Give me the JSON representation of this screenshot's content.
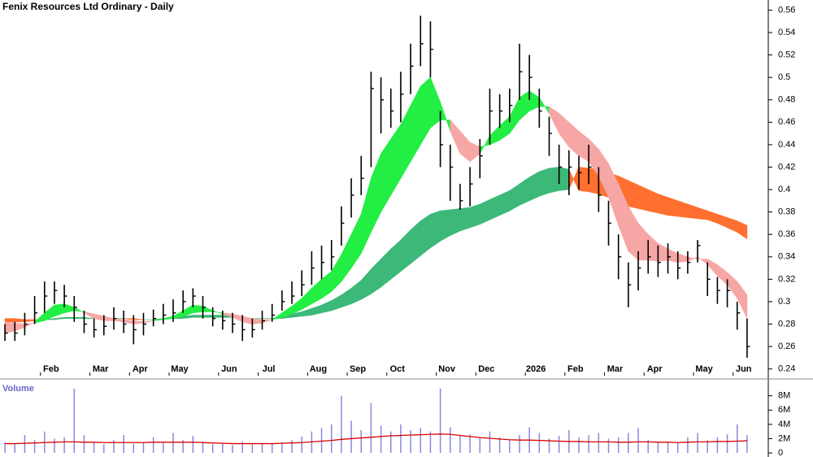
{
  "chart_data": {
    "type": "ohlc",
    "title": "Fenix Resources Ltd Ordinary - Daily",
    "categories": [
      null,
      null,
      null,
      null,
      "Feb",
      null,
      null,
      null,
      null,
      "Mar",
      null,
      null,
      null,
      "Apr",
      null,
      null,
      null,
      "May",
      null,
      null,
      null,
      null,
      "Jun",
      null,
      null,
      null,
      "Jul",
      null,
      null,
      null,
      null,
      "Aug",
      null,
      null,
      null,
      "Sep",
      null,
      null,
      null,
      "Oct",
      null,
      null,
      null,
      null,
      "Nov",
      null,
      null,
      null,
      "Dec",
      null,
      null,
      null,
      null,
      "2026",
      null,
      null,
      null,
      "Feb",
      null,
      null,
      null,
      "Mar",
      null,
      null,
      null,
      "Apr",
      null,
      null,
      null,
      null,
      "May",
      null,
      null,
      null,
      "Jun",
      null
    ],
    "high": [
      0.28,
      0.282,
      0.29,
      0.305,
      0.318,
      0.318,
      0.315,
      0.305,
      0.292,
      0.285,
      0.288,
      0.295,
      0.292,
      0.288,
      0.29,
      0.293,
      0.298,
      0.302,
      0.31,
      0.312,
      0.305,
      0.295,
      0.292,
      0.29,
      0.288,
      0.285,
      0.292,
      0.298,
      0.31,
      0.318,
      0.328,
      0.345,
      0.35,
      0.355,
      0.385,
      0.41,
      0.43,
      0.505,
      0.5,
      0.49,
      0.505,
      0.53,
      0.555,
      0.55,
      0.47,
      0.44,
      0.405,
      0.42,
      0.445,
      0.49,
      0.485,
      0.49,
      0.53,
      0.52,
      0.49,
      0.465,
      0.44,
      0.435,
      0.43,
      0.44,
      0.42,
      0.39,
      0.36,
      0.335,
      0.345,
      0.355,
      0.35,
      0.352,
      0.345,
      0.345,
      0.355,
      0.335,
      0.322,
      0.32,
      0.3,
      0.285
    ],
    "low": [
      0.265,
      0.265,
      0.27,
      0.28,
      0.29,
      0.298,
      0.295,
      0.282,
      0.272,
      0.268,
      0.27,
      0.275,
      0.272,
      0.262,
      0.27,
      0.278,
      0.28,
      0.282,
      0.29,
      0.295,
      0.285,
      0.278,
      0.275,
      0.272,
      0.265,
      0.268,
      0.275,
      0.282,
      0.292,
      0.298,
      0.305,
      0.315,
      0.32,
      0.328,
      0.35,
      0.375,
      0.395,
      0.42,
      0.45,
      0.455,
      0.46,
      0.485,
      0.51,
      0.5,
      0.42,
      0.39,
      0.382,
      0.385,
      0.41,
      0.44,
      0.455,
      0.46,
      0.48,
      0.48,
      0.455,
      0.43,
      0.405,
      0.395,
      0.4,
      0.405,
      0.38,
      0.35,
      0.32,
      0.295,
      0.31,
      0.325,
      0.322,
      0.325,
      0.32,
      0.325,
      0.335,
      0.305,
      0.298,
      0.295,
      0.275,
      0.25
    ],
    "close": [
      0.272,
      0.272,
      0.28,
      0.29,
      0.305,
      0.31,
      0.305,
      0.295,
      0.28,
      0.275,
      0.278,
      0.285,
      0.28,
      0.275,
      0.28,
      0.285,
      0.288,
      0.29,
      0.3,
      0.305,
      0.295,
      0.285,
      0.283,
      0.28,
      0.275,
      0.275,
      0.283,
      0.288,
      0.3,
      0.305,
      0.315,
      0.33,
      0.335,
      0.34,
      0.37,
      0.395,
      0.41,
      0.49,
      0.48,
      0.47,
      0.485,
      0.51,
      0.53,
      0.525,
      0.44,
      0.42,
      0.39,
      0.405,
      0.43,
      0.47,
      0.47,
      0.475,
      0.505,
      0.5,
      0.47,
      0.45,
      0.42,
      0.42,
      0.415,
      0.42,
      0.395,
      0.37,
      0.34,
      0.315,
      0.33,
      0.34,
      0.335,
      0.34,
      0.33,
      0.335,
      0.35,
      0.32,
      0.31,
      0.31,
      0.29,
      0.26
    ],
    "bar_color": "#000000",
    "short_fast": [
      0.272,
      0.274,
      0.277,
      0.282,
      0.29,
      0.297,
      0.298,
      0.295,
      0.29,
      0.285,
      0.283,
      0.283,
      0.282,
      0.28,
      0.281,
      0.283,
      0.285,
      0.287,
      0.292,
      0.297,
      0.296,
      0.292,
      0.289,
      0.286,
      0.282,
      0.28,
      0.281,
      0.284,
      0.29,
      0.296,
      0.303,
      0.312,
      0.32,
      0.327,
      0.342,
      0.36,
      0.378,
      0.41,
      0.432,
      0.445,
      0.458,
      0.475,
      0.492,
      0.5,
      0.478,
      0.452,
      0.432,
      0.425,
      0.432,
      0.448,
      0.457,
      0.465,
      0.482,
      0.488,
      0.482,
      0.468,
      0.45,
      0.438,
      0.43,
      0.425,
      0.412,
      0.393,
      0.368,
      0.345,
      0.337,
      0.337,
      0.336,
      0.337,
      0.335,
      0.336,
      0.34,
      0.333,
      0.323,
      0.315,
      0.303,
      0.285
    ],
    "short_slow": [
      0.282,
      0.281,
      0.28,
      0.281,
      0.283,
      0.287,
      0.29,
      0.292,
      0.291,
      0.289,
      0.287,
      0.285,
      0.284,
      0.283,
      0.282,
      0.283,
      0.284,
      0.285,
      0.287,
      0.29,
      0.291,
      0.291,
      0.29,
      0.289,
      0.287,
      0.285,
      0.284,
      0.284,
      0.286,
      0.289,
      0.293,
      0.298,
      0.303,
      0.309,
      0.318,
      0.33,
      0.343,
      0.362,
      0.38,
      0.395,
      0.41,
      0.425,
      0.44,
      0.455,
      0.462,
      0.462,
      0.452,
      0.442,
      0.438,
      0.44,
      0.444,
      0.45,
      0.462,
      0.47,
      0.474,
      0.474,
      0.468,
      0.46,
      0.452,
      0.445,
      0.436,
      0.423,
      0.405,
      0.385,
      0.37,
      0.36,
      0.352,
      0.347,
      0.343,
      0.34,
      0.338,
      0.338,
      0.333,
      0.326,
      0.318,
      0.306
    ],
    "short_up_color": "#22ee44",
    "short_down_color": "#f7a6a6",
    "long_fast": [
      0.282,
      0.282,
      0.282,
      0.283,
      0.284,
      0.285,
      0.286,
      0.286,
      0.286,
      0.285,
      0.285,
      0.285,
      0.285,
      0.284,
      0.284,
      0.284,
      0.285,
      0.286,
      0.287,
      0.288,
      0.288,
      0.288,
      0.288,
      0.287,
      0.286,
      0.285,
      0.285,
      0.285,
      0.287,
      0.289,
      0.291,
      0.294,
      0.297,
      0.301,
      0.306,
      0.312,
      0.319,
      0.329,
      0.338,
      0.347,
      0.355,
      0.364,
      0.372,
      0.378,
      0.381,
      0.382,
      0.383,
      0.384,
      0.387,
      0.391,
      0.395,
      0.399,
      0.405,
      0.411,
      0.416,
      0.419,
      0.42,
      0.418,
      0.399,
      0.398,
      0.396,
      0.393,
      0.389,
      0.385,
      0.383,
      0.381,
      0.379,
      0.377,
      0.376,
      0.375,
      0.374,
      0.373,
      0.37,
      0.366,
      0.362,
      0.356
    ],
    "long_slow": [
      0.285,
      0.285,
      0.284,
      0.284,
      0.284,
      0.284,
      0.285,
      0.285,
      0.285,
      0.285,
      0.285,
      0.285,
      0.285,
      0.285,
      0.284,
      0.284,
      0.284,
      0.285,
      0.285,
      0.286,
      0.286,
      0.286,
      0.286,
      0.286,
      0.286,
      0.285,
      0.285,
      0.285,
      0.285,
      0.286,
      0.287,
      0.288,
      0.29,
      0.292,
      0.295,
      0.298,
      0.302,
      0.307,
      0.313,
      0.32,
      0.327,
      0.334,
      0.341,
      0.348,
      0.354,
      0.359,
      0.363,
      0.366,
      0.369,
      0.373,
      0.377,
      0.381,
      0.386,
      0.39,
      0.394,
      0.397,
      0.399,
      0.4,
      0.42,
      0.419,
      0.418,
      0.415,
      0.412,
      0.408,
      0.404,
      0.4,
      0.396,
      0.393,
      0.39,
      0.387,
      0.384,
      0.381,
      0.378,
      0.375,
      0.372,
      0.368
    ],
    "long_up_color": "#3cb878",
    "long_down_color": "#ff7030",
    "ylim": [
      0.234,
      0.569
    ],
    "yticks": [
      0.24,
      0.26,
      0.28,
      0.3,
      0.32,
      0.34,
      0.36,
      0.38,
      0.4,
      0.42,
      0.44,
      0.46,
      0.48,
      0.5,
      0.52,
      0.54,
      0.56
    ],
    "volume_label": "Volume",
    "volume": [
      1.5,
      1.2,
      2.5,
      1.8,
      3,
      2,
      2.2,
      9,
      2.5,
      1.5,
      1.2,
      1.8,
      2.5,
      1.3,
      1.5,
      2.2,
      1.4,
      2.8,
      1.8,
      2.4,
      1.6,
      1.2,
      1.3,
      1.1,
      1.6,
      1.2,
      1.4,
      1.3,
      1.5,
      1.8,
      2.3,
      3,
      3.5,
      4,
      8,
      4.5,
      3.2,
      7,
      3.8,
      3,
      4,
      3.2,
      3.5,
      3,
      9,
      3.6,
      2.4,
      2.6,
      2.2,
      3,
      2.2,
      1.8,
      2.5,
      3.6,
      2.8,
      2,
      2.4,
      3.2,
      2.2,
      2.5,
      2.8,
      2,
      2.2,
      2.8,
      3.5,
      1.8,
      1.6,
      1.5,
      1.4,
      2.2,
      2.8,
      1.8,
      2.2,
      2.6,
      4,
      2.5
    ],
    "volume_ma": [
      1.3,
      1.3,
      1.35,
      1.4,
      1.45,
      1.5,
      1.55,
      1.55,
      1.5,
      1.5,
      1.45,
      1.45,
      1.45,
      1.45,
      1.45,
      1.5,
      1.5,
      1.5,
      1.5,
      1.5,
      1.45,
      1.4,
      1.35,
      1.3,
      1.3,
      1.3,
      1.3,
      1.3,
      1.35,
      1.4,
      1.45,
      1.55,
      1.65,
      1.75,
      1.9,
      2,
      2.1,
      2.2,
      2.3,
      2.4,
      2.45,
      2.5,
      2.55,
      2.6,
      2.65,
      2.6,
      2.45,
      2.3,
      2.15,
      2.05,
      1.95,
      1.85,
      1.8,
      1.8,
      1.75,
      1.7,
      1.65,
      1.6,
      1.6,
      1.55,
      1.55,
      1.55,
      1.5,
      1.5,
      1.55,
      1.55,
      1.5,
      1.5,
      1.45,
      1.5,
      1.55,
      1.55,
      1.6,
      1.6,
      1.65,
      1.7
    ],
    "volume_color": "#8888dd",
    "volume_ma_color": "#dd0000",
    "vlim": [
      0,
      9.9
    ],
    "vticks": [
      0,
      {
        "value": 2,
        "label": "2M"
      },
      {
        "value": 4,
        "label": "4M"
      },
      {
        "value": 6,
        "label": "6M"
      },
      {
        "value": 8,
        "label": "8M"
      }
    ]
  }
}
